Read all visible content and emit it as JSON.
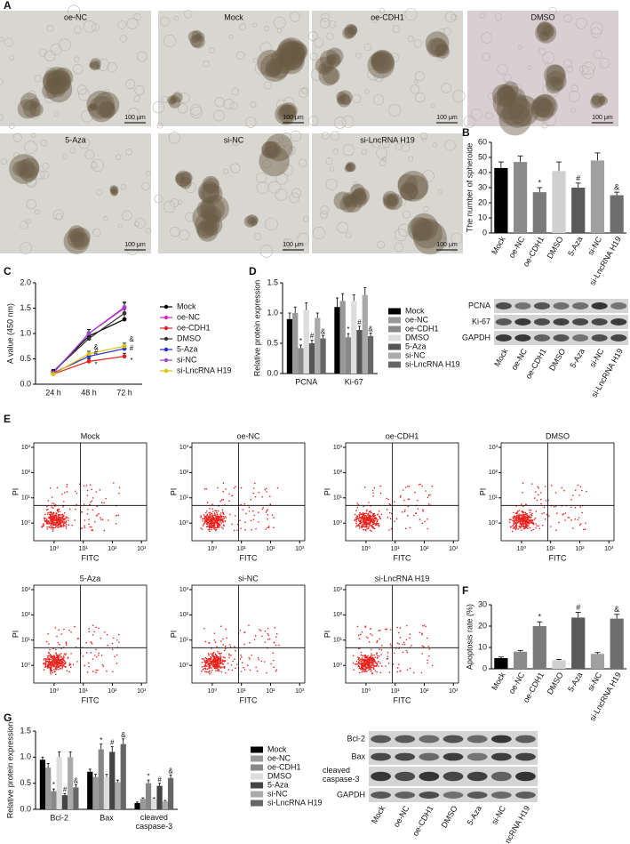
{
  "images": {
    "panel": "A",
    "titles": [
      "oe-NC",
      "Mock",
      "oe-CDH1",
      "DMSO",
      "5-Aza",
      "si-NC",
      "si-LncRNA H19"
    ],
    "scale_bar": "100 μm"
  },
  "flow": {
    "panel": "E",
    "titles": [
      "Mock",
      "oe-NC",
      "oe-CDH1",
      "DMSO",
      "5-Aza",
      "si-NC",
      "si-LncRNA H19"
    ],
    "xlabel": "FITC",
    "ylabel": "PI",
    "log_scale": true,
    "lim": [
      0.2,
      1500
    ],
    "ticks": [
      {
        "value": 1,
        "label": "10⁰"
      },
      {
        "value": 10,
        "label": "10¹"
      },
      {
        "value": 100,
        "label": "10²"
      },
      {
        "value": 1000,
        "label": "10³"
      }
    ],
    "gate": [
      8,
      5
    ],
    "color": "#e8231e"
  },
  "chart_data": [
    {
      "panel": "B",
      "type": "bar",
      "ylabel": "The number of spheroide",
      "categories": [
        "Mock",
        "oe-NC",
        "oe-CDH1",
        "DMSO",
        "5-Aza",
        "si-NC",
        "si-LncRNA H19"
      ],
      "values": [
        43,
        47,
        27,
        41,
        30,
        48,
        25
      ],
      "errors": [
        4,
        4,
        3,
        6,
        3,
        5,
        2
      ],
      "markers": [
        null,
        null,
        "*",
        null,
        "#",
        null,
        "&"
      ],
      "colors": [
        "#000000",
        "#8c8c8c",
        "#7a7a7a",
        "#d0d0d0",
        "#5a5a5a",
        "#a0a0a0",
        "#6e6e6e"
      ],
      "ylim": [
        0,
        60
      ],
      "yticks": [
        0,
        10,
        20,
        30,
        40,
        50,
        60
      ]
    },
    {
      "panel": "C",
      "type": "line",
      "ylabel": "A value (450 nm)",
      "categories": [
        "24 h",
        "48 h",
        "72 h"
      ],
      "ylim": [
        0,
        2
      ],
      "yticks": [
        {
          "value": 0,
          "label": "0.0"
        },
        0.5,
        {
          "value": 1,
          "label": "1.0"
        },
        1.5,
        {
          "value": 2,
          "label": "2.0"
        }
      ],
      "series": [
        {
          "name": "Mock",
          "color": "#000000",
          "values": [
            0.25,
            0.95,
            1.28
          ],
          "errors": [
            0.04,
            0.08,
            0.12
          ]
        },
        {
          "name": "oe-NC",
          "color": "#e020c0",
          "values": [
            0.22,
            1.0,
            1.5
          ],
          "errors": [
            0.04,
            0.08,
            0.1
          ]
        },
        {
          "name": "oe-CDH1",
          "color": "#e81e1e",
          "values": [
            0.2,
            0.45,
            0.55
          ],
          "errors": [
            0.03,
            0.05,
            0.06
          ]
        },
        {
          "name": "DMSO",
          "color": "#333333",
          "values": [
            0.25,
            0.9,
            1.4
          ],
          "errors": [
            0.04,
            0.08,
            0.1
          ]
        },
        {
          "name": "5-Aza",
          "color": "#2030d0",
          "values": [
            0.22,
            0.55,
            0.7
          ],
          "errors": [
            0.03,
            0.05,
            0.06
          ]
        },
        {
          "name": "si-NC",
          "color": "#a040d0",
          "values": [
            0.23,
            1.0,
            1.52
          ],
          "errors": [
            0.04,
            0.08,
            0.1
          ]
        },
        {
          "name": "si-LncRNA H19",
          "color": "#e0c000",
          "values": [
            0.2,
            0.6,
            0.75
          ],
          "errors": [
            0.03,
            0.05,
            0.06
          ]
        }
      ],
      "annotations": [
        {
          "text": "&",
          "x": 1,
          "y": 0.72
        },
        {
          "text": "#",
          "x": 1,
          "y": 0.62
        },
        {
          "text": "*",
          "x": 1,
          "y": 0.38
        },
        {
          "text": "&",
          "x": 2,
          "y": 0.88
        },
        {
          "text": "#",
          "x": 2,
          "y": 0.7
        },
        {
          "text": "*",
          "x": 2,
          "y": 0.46
        }
      ]
    },
    {
      "panel": "D",
      "type": "grouped_bar",
      "ylabel": "Relative protein expression",
      "categories": [
        "PCNA",
        "Ki-67"
      ],
      "ylim": [
        0,
        1.5
      ],
      "yticks": [
        {
          "value": 0,
          "label": "0.0"
        },
        0.5,
        {
          "value": 1,
          "label": "1.0"
        },
        1.5
      ],
      "blot_rows": [
        "PCNA",
        "Ki-67",
        "GAPDH"
      ],
      "series": [
        {
          "name": "Mock",
          "color": "#000000",
          "values": [
            0.9,
            1.1
          ],
          "errors": [
            0.1,
            0.15
          ],
          "markers": [
            null,
            null
          ]
        },
        {
          "name": "oe-NC",
          "color": "#999999",
          "values": [
            1.0,
            1.2
          ],
          "errors": [
            0.1,
            0.12
          ],
          "markers": [
            null,
            null
          ]
        },
        {
          "name": "oe-CDH1",
          "color": "#888888",
          "values": [
            0.42,
            0.6
          ],
          "errors": [
            0.05,
            0.06
          ],
          "markers": [
            "*",
            "*"
          ]
        },
        {
          "name": "DMSO",
          "color": "#dddddd",
          "values": [
            1.05,
            1.2
          ],
          "errors": [
            0.12,
            0.1
          ],
          "markers": [
            null,
            null
          ]
        },
        {
          "name": "5-Aza",
          "color": "#555555",
          "values": [
            0.5,
            0.72
          ],
          "errors": [
            0.05,
            0.06
          ],
          "markers": [
            "#",
            "#"
          ]
        },
        {
          "name": "si-NC",
          "color": "#aaaaaa",
          "values": [
            0.92,
            1.3
          ],
          "errors": [
            0.08,
            0.12
          ],
          "markers": [
            null,
            null
          ]
        },
        {
          "name": "si-LncRNA H19",
          "color": "#666666",
          "values": [
            0.58,
            0.62
          ],
          "errors": [
            0.05,
            0.05
          ],
          "markers": [
            "&",
            "&"
          ]
        }
      ]
    },
    {
      "panel": "F",
      "type": "bar",
      "ylabel": "Apoptosis rate (%)",
      "categories": [
        "Mock",
        "oe-NC",
        "oe-CDH1",
        "DMSO",
        "5-Aza",
        "si-NC",
        "si-LncRNA H19"
      ],
      "values": [
        5,
        8,
        20,
        4,
        24,
        7,
        23.5
      ],
      "errors": [
        0.5,
        0.6,
        2,
        0.4,
        2.5,
        0.6,
        2
      ],
      "markers": [
        null,
        null,
        "*",
        null,
        "#",
        null,
        "&"
      ],
      "colors": [
        "#000000",
        "#8c8c8c",
        "#7a7a7a",
        "#d0d0d0",
        "#5a5a5a",
        "#a0a0a0",
        "#6e6e6e"
      ],
      "ylim": [
        0,
        30
      ],
      "yticks": [
        0,
        10,
        20,
        30
      ]
    },
    {
      "panel": "G",
      "type": "grouped_bar",
      "ylabel": "Relative protein expression",
      "categories": [
        "Bcl-2",
        "Bax",
        "cleaved caspase-3"
      ],
      "ylim": [
        0,
        1.5
      ],
      "yticks": [
        {
          "value": 0,
          "label": "0.0"
        },
        0.5,
        {
          "value": 1,
          "label": "1.0"
        },
        1.5
      ],
      "blot_rows": [
        "Bcl-2",
        "Bax",
        "cleaved caspase-3",
        "GAPDH"
      ],
      "series": [
        {
          "name": "Mock",
          "color": "#000000",
          "values": [
            0.95,
            0.72,
            0.12
          ],
          "errors": [
            0.05,
            0.05,
            0.02
          ],
          "markers": [
            null,
            null,
            null
          ]
        },
        {
          "name": "oe-NC",
          "color": "#999999",
          "values": [
            0.8,
            0.62,
            0.2
          ],
          "errors": [
            0.08,
            0.05,
            0.02
          ],
          "markers": [
            null,
            null,
            null
          ]
        },
        {
          "name": "oe-CDH1",
          "color": "#888888",
          "values": [
            0.35,
            1.15,
            0.5
          ],
          "errors": [
            0.04,
            0.1,
            0.06
          ],
          "markers": [
            "*",
            "*",
            "*"
          ]
        },
        {
          "name": "DMSO",
          "color": "#dddddd",
          "values": [
            1.0,
            0.62,
            0.2
          ],
          "errors": [
            0.1,
            0.05,
            0.02
          ],
          "markers": [
            null,
            null,
            null
          ]
        },
        {
          "name": "5-Aza",
          "color": "#444444",
          "values": [
            0.27,
            1.1,
            0.45
          ],
          "errors": [
            0.03,
            0.1,
            0.05
          ],
          "markers": [
            "#",
            "#",
            "#"
          ]
        },
        {
          "name": "si-NC",
          "color": "#aaaaaa",
          "values": [
            1.0,
            0.52,
            0.15
          ],
          "errors": [
            0.1,
            0.04,
            0.02
          ],
          "markers": [
            null,
            null,
            null
          ]
        },
        {
          "name": "si-LncRNA H19",
          "color": "#666666",
          "values": [
            0.42,
            1.25,
            0.6
          ],
          "errors": [
            0.05,
            0.1,
            0.06
          ],
          "markers": [
            "&",
            "&",
            "&"
          ]
        }
      ]
    }
  ]
}
